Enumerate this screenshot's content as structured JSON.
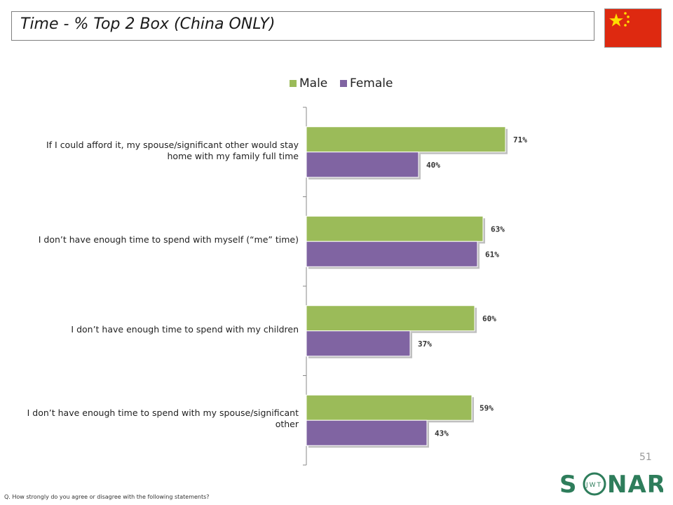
{
  "slide": {
    "title": "Time - % Top 2 Box (China ONLY)",
    "page_number": "51",
    "footnote": "Q. How strongly do you agree or disagree with the following statements?",
    "logo_text_main": "S NAR",
    "logo_text_sub": "JWT"
  },
  "colors": {
    "male": "#9bbb59",
    "female": "#8064a2",
    "flag_red": "#de2910",
    "flag_star": "#ffde00",
    "logo_green": "#2e7d5b"
  },
  "chart_data": {
    "type": "bar",
    "orientation": "horizontal",
    "categories": [
      "If I could afford it, my spouse/significant other would stay home with my family full time",
      "I don’t have enough time to spend with myself (“me” time)",
      "I don’t have enough time to spend with my children",
      "I don’t have enough time to spend with my spouse/significant other"
    ],
    "series": [
      {
        "name": "Male",
        "values": [
          71,
          63,
          60,
          59
        ],
        "labels": [
          "71%",
          "63%",
          "60%",
          "59%"
        ]
      },
      {
        "name": "Female",
        "values": [
          40,
          61,
          37,
          43
        ],
        "labels": [
          "40%",
          "61%",
          "37%",
          "43%"
        ]
      }
    ],
    "xlim": [
      0,
      100
    ],
    "legend_position": "top",
    "grid": false
  }
}
